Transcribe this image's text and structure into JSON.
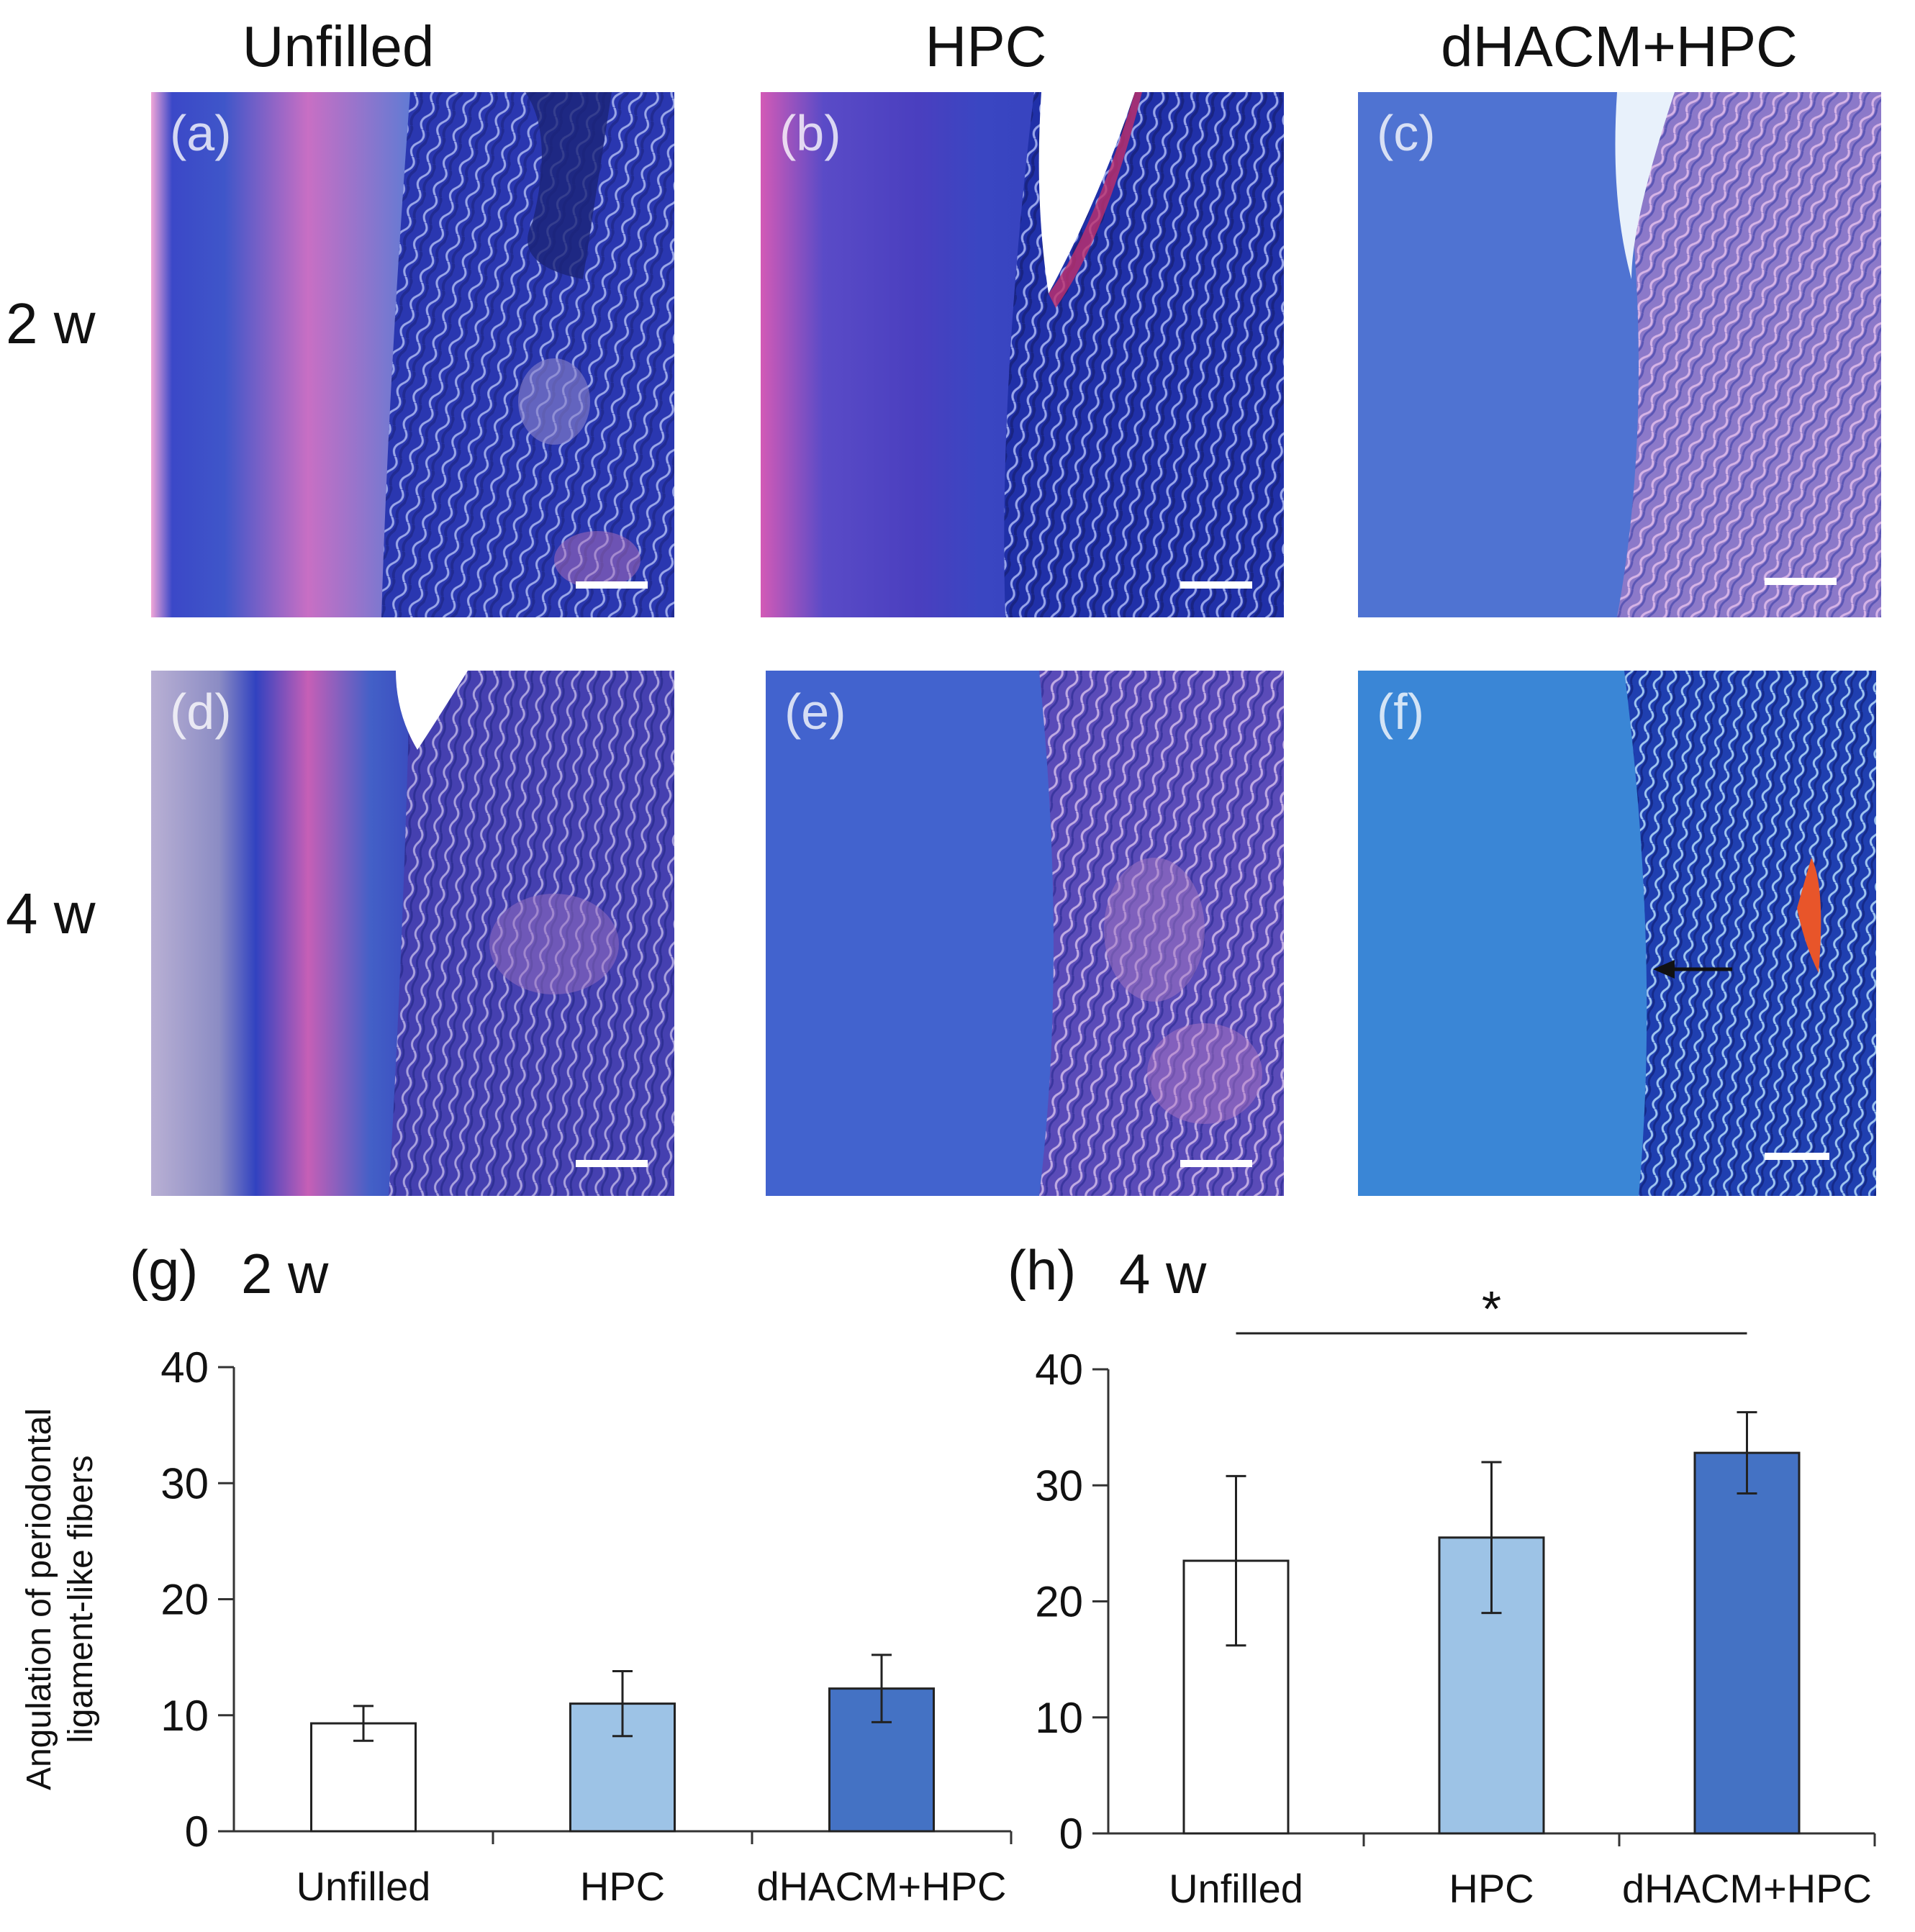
{
  "columns": [
    "Unfilled",
    "HPC",
    "dHACM+HPC"
  ],
  "rows": [
    "2 w",
    "4 w"
  ],
  "panels": {
    "a": "(a)",
    "b": "(b)",
    "c": "(c)",
    "d": "(d)",
    "e": "(e)",
    "f": "(f)"
  },
  "chart_titles": {
    "g_label": "(g)",
    "g_time": "2 w",
    "h_label": "(h)",
    "h_time": "4 w"
  },
  "colors": {
    "unfilled": "#ffffff",
    "hpc": "#9dc3e6",
    "dhacm_hpc": "#4472c4",
    "stain_blue": "#2f3fbf",
    "stain_magenta": "#d94fb0"
  },
  "chart_data": [
    {
      "type": "bar",
      "panel": "(g)",
      "title": "2 w",
      "ylabel": "Angulation of periodontal ligament-like fibers",
      "xlabel": "",
      "ylim": [
        0,
        40
      ],
      "yticks": [
        0,
        10,
        20,
        30,
        40
      ],
      "categories": [
        "Unfilled",
        "HPC",
        "dHACM+HPC"
      ],
      "values": [
        9.3,
        11.0,
        12.3
      ],
      "errors": [
        1.5,
        2.8,
        2.9
      ],
      "grid": false,
      "significance": []
    },
    {
      "type": "bar",
      "panel": "(h)",
      "title": "4 w",
      "ylabel": "",
      "xlabel": "",
      "ylim": [
        0,
        40
      ],
      "yticks": [
        0,
        10,
        20,
        30,
        40
      ],
      "categories": [
        "Unfilled",
        "HPC",
        "dHACM+HPC"
      ],
      "values": [
        23.5,
        25.5,
        32.8
      ],
      "errors": [
        7.3,
        6.5,
        3.5
      ],
      "grid": false,
      "significance": [
        {
          "from": "Unfilled",
          "to": "dHACM+HPC",
          "label": "*"
        }
      ]
    }
  ]
}
